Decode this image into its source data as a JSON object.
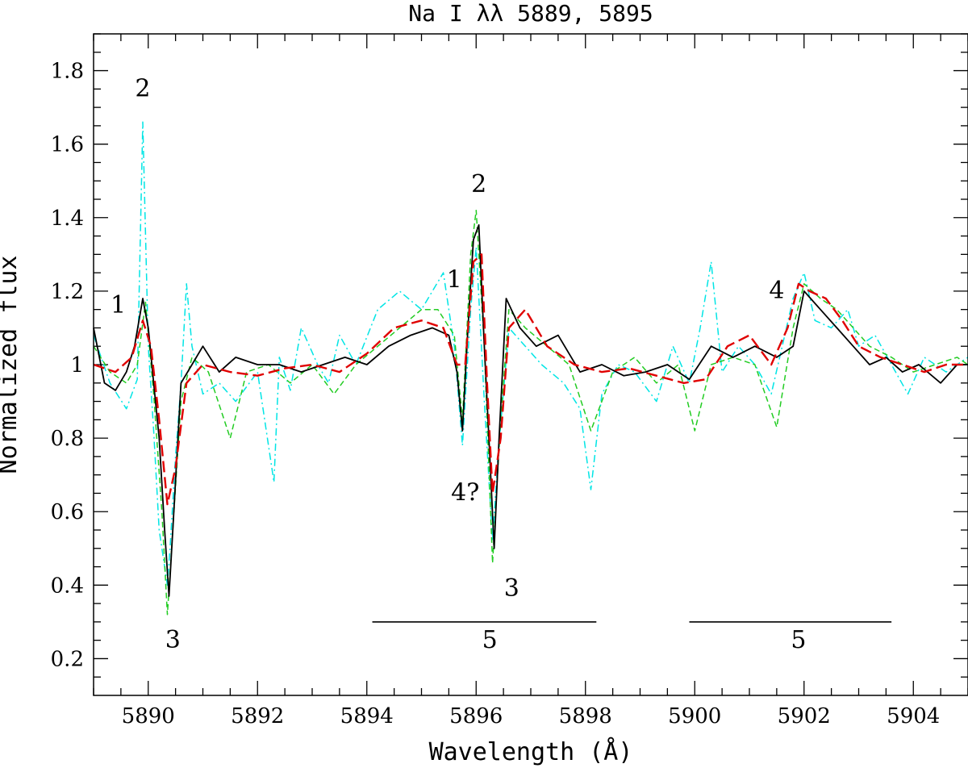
{
  "chart_data": {
    "type": "line",
    "title": "Na I λλ 5889, 5895",
    "xlabel": "Wavelength (Å)",
    "ylabel": "Normalized flux",
    "xlim": [
      5889,
      5905
    ],
    "ylim": [
      0.1,
      1.9
    ],
    "xticks": [
      5890,
      5892,
      5894,
      5896,
      5898,
      5900,
      5902,
      5904
    ],
    "yticks": [
      0.2,
      0.4,
      0.6,
      0.8,
      1,
      1.2,
      1.4,
      1.6,
      1.8
    ],
    "ytick_labels": [
      "0.2",
      "0.4",
      "0.6",
      "0.8",
      "1",
      "1.2",
      "1.4",
      "1.6",
      "1.8"
    ],
    "grid": false,
    "legend": "none",
    "series": [
      {
        "color": "#00e5e5",
        "dash": "dashdot",
        "x": [
          5889.0,
          5889.3,
          5889.6,
          5889.8,
          5889.9,
          5890.0,
          5890.1,
          5890.2,
          5890.3,
          5890.35,
          5890.4,
          5890.5,
          5890.6,
          5890.7,
          5890.8,
          5891.0,
          5891.3,
          5891.6,
          5892.0,
          5892.3,
          5892.4,
          5892.6,
          5892.8,
          5893.1,
          5893.3,
          5893.5,
          5893.8,
          5894.2,
          5894.6,
          5895.0,
          5895.4,
          5895.6,
          5895.75,
          5895.9,
          5896.0,
          5896.15,
          5896.3,
          5896.4,
          5896.6,
          5896.9,
          5897.2,
          5897.6,
          5897.9,
          5898.1,
          5898.3,
          5898.6,
          5898.9,
          5899.3,
          5899.6,
          5899.9,
          5900.1,
          5900.3,
          5900.5,
          5900.8,
          5901.1,
          5901.4,
          5901.6,
          5901.8,
          5902.0,
          5902.2,
          5902.5,
          5902.8,
          5903.0,
          5903.3,
          5903.6,
          5903.9,
          5904.2,
          5904.6,
          5905.0
        ],
        "y": [
          1.08,
          0.95,
          0.88,
          0.96,
          1.66,
          1.05,
          0.82,
          0.55,
          0.45,
          0.4,
          0.5,
          0.75,
          0.95,
          1.22,
          1.05,
          0.92,
          0.95,
          0.9,
          0.98,
          0.68,
          1.02,
          0.93,
          1.1,
          1.0,
          0.95,
          1.08,
          1.0,
          1.15,
          1.2,
          1.15,
          1.25,
          1.05,
          0.78,
          1.15,
          1.32,
          0.9,
          0.52,
          0.75,
          1.1,
          1.05,
          1.0,
          0.95,
          0.88,
          0.66,
          0.92,
          1.0,
          0.98,
          0.9,
          1.05,
          0.95,
          1.1,
          1.28,
          0.98,
          1.05,
          1.0,
          0.92,
          1.05,
          1.18,
          1.25,
          1.12,
          1.1,
          1.15,
          1.05,
          1.08,
          1.0,
          0.92,
          1.02,
          0.98,
          1.02
        ]
      },
      {
        "color": "#22cc22",
        "dash": "dashed",
        "x": [
          5889.0,
          5889.3,
          5889.6,
          5889.8,
          5889.95,
          5890.1,
          5890.25,
          5890.35,
          5890.45,
          5890.6,
          5890.8,
          5891.1,
          5891.5,
          5891.8,
          5892.2,
          5892.6,
          5893.0,
          5893.4,
          5893.8,
          5894.2,
          5894.6,
          5895.0,
          5895.3,
          5895.6,
          5895.75,
          5895.9,
          5896.0,
          5896.15,
          5896.3,
          5896.45,
          5896.6,
          5896.9,
          5897.3,
          5897.7,
          5898.1,
          5898.5,
          5898.9,
          5899.3,
          5899.7,
          5900.0,
          5900.3,
          5900.7,
          5901.1,
          5901.5,
          5901.8,
          5902.0,
          5902.3,
          5902.6,
          5902.9,
          5903.2,
          5903.6,
          5904.0,
          5904.4,
          5904.8,
          5905.0
        ],
        "y": [
          1.05,
          0.98,
          0.95,
          1.0,
          1.17,
          0.92,
          0.6,
          0.32,
          0.55,
          0.9,
          1.02,
          0.98,
          0.8,
          0.98,
          1.0,
          0.95,
          1.0,
          0.92,
          1.0,
          1.05,
          1.1,
          1.15,
          1.15,
          1.08,
          0.85,
          1.3,
          1.42,
          1.05,
          0.46,
          0.85,
          1.15,
          1.1,
          1.05,
          1.0,
          0.82,
          0.98,
          1.02,
          0.95,
          1.0,
          0.82,
          1.0,
          1.02,
          1.0,
          0.83,
          1.1,
          1.22,
          1.18,
          1.15,
          1.1,
          1.05,
          1.02,
          0.98,
          1.0,
          1.02,
          1.0
        ]
      },
      {
        "color": "#000000",
        "dash": "solid",
        "x": [
          5889.0,
          5889.2,
          5889.4,
          5889.6,
          5889.75,
          5889.9,
          5890.0,
          5890.1,
          5890.2,
          5890.3,
          5890.38,
          5890.45,
          5890.6,
          5890.8,
          5891.0,
          5891.3,
          5891.6,
          5892.0,
          5892.4,
          5892.8,
          5893.2,
          5893.6,
          5894.0,
          5894.4,
          5894.8,
          5895.2,
          5895.5,
          5895.65,
          5895.75,
          5895.85,
          5895.95,
          5896.05,
          5896.15,
          5896.25,
          5896.33,
          5896.42,
          5896.55,
          5896.8,
          5897.1,
          5897.5,
          5897.9,
          5898.3,
          5898.7,
          5899.1,
          5899.5,
          5899.9,
          5900.3,
          5900.7,
          5901.1,
          5901.5,
          5901.8,
          5902.0,
          5902.3,
          5902.6,
          5902.9,
          5903.2,
          5903.5,
          5903.8,
          5904.1,
          5904.5,
          5904.8,
          5905.0
        ],
        "y": [
          1.1,
          0.95,
          0.93,
          0.98,
          1.05,
          1.18,
          1.1,
          0.95,
          0.8,
          0.55,
          0.37,
          0.55,
          0.95,
          1.0,
          1.05,
          0.98,
          1.02,
          1.0,
          1.0,
          0.98,
          1.0,
          1.02,
          1.0,
          1.05,
          1.08,
          1.1,
          1.08,
          0.98,
          0.82,
          1.1,
          1.34,
          1.38,
          1.05,
          0.75,
          0.5,
          0.8,
          1.18,
          1.1,
          1.05,
          1.08,
          0.98,
          1.0,
          0.97,
          0.98,
          1.0,
          0.96,
          1.05,
          1.02,
          1.05,
          1.02,
          1.05,
          1.2,
          1.15,
          1.1,
          1.05,
          1.0,
          1.02,
          0.98,
          1.0,
          0.95,
          1.0,
          1.0
        ]
      },
      {
        "color": "#e00000",
        "dash": "longdash",
        "x": [
          5889.0,
          5889.4,
          5889.7,
          5889.9,
          5890.05,
          5890.2,
          5890.35,
          5890.5,
          5890.7,
          5891.0,
          5891.5,
          5892.0,
          5892.5,
          5893.0,
          5893.5,
          5894.0,
          5894.5,
          5895.0,
          5895.4,
          5895.65,
          5895.8,
          5895.95,
          5896.1,
          5896.2,
          5896.3,
          5896.45,
          5896.6,
          5896.9,
          5897.3,
          5897.8,
          5898.3,
          5898.8,
          5899.3,
          5899.8,
          5900.2,
          5900.6,
          5901.0,
          5901.4,
          5901.7,
          5901.9,
          5902.1,
          5902.4,
          5902.7,
          5903.0,
          5903.4,
          5903.8,
          5904.2,
          5904.6,
          5905.0
        ],
        "y": [
          1.0,
          0.98,
          1.02,
          1.12,
          1.05,
          0.85,
          0.62,
          0.72,
          0.95,
          1.0,
          0.98,
          0.97,
          0.99,
          1.0,
          0.98,
          1.03,
          1.1,
          1.12,
          1.1,
          1.0,
          1.0,
          1.28,
          1.3,
          0.95,
          0.65,
          0.8,
          1.1,
          1.15,
          1.05,
          1.0,
          0.98,
          0.99,
          0.97,
          0.95,
          0.96,
          1.05,
          1.08,
          1.0,
          1.1,
          1.22,
          1.2,
          1.18,
          1.12,
          1.05,
          1.02,
          1.0,
          0.98,
          1.0,
          1.0
        ]
      }
    ],
    "annotations": [
      {
        "text": "2",
        "x": 5889.9,
        "y": 1.73
      },
      {
        "text": "1",
        "x": 5889.45,
        "y": 1.14
      },
      {
        "text": "3",
        "x": 5890.45,
        "y": 0.23
      },
      {
        "text": "2",
        "x": 5896.05,
        "y": 1.47
      },
      {
        "text": "1",
        "x": 5895.6,
        "y": 1.21
      },
      {
        "text": "4?",
        "x": 5895.8,
        "y": 0.63
      },
      {
        "text": "3",
        "x": 5896.65,
        "y": 0.37
      },
      {
        "text": "4",
        "x": 5901.5,
        "y": 1.18
      },
      {
        "text": "5",
        "x": 5896.25,
        "y": 0.23
      },
      {
        "text": "5",
        "x": 5901.9,
        "y": 0.23
      }
    ],
    "segments": [
      {
        "label": "5",
        "x0": 5894.1,
        "x1": 5898.2,
        "y": 0.3
      },
      {
        "label": "5",
        "x0": 5899.9,
        "x1": 5903.6,
        "y": 0.3
      }
    ]
  }
}
